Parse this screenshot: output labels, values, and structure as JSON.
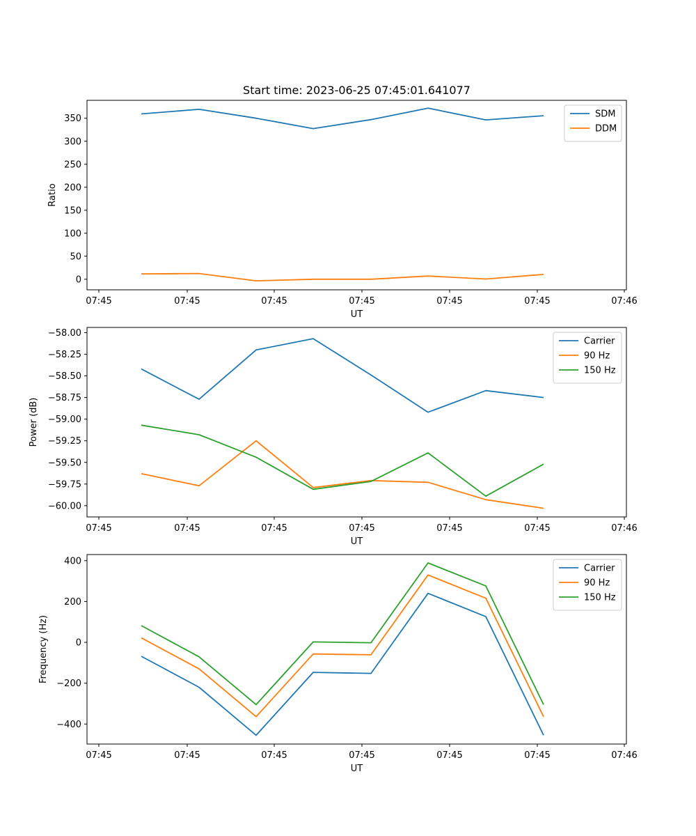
{
  "chart_data": [
    {
      "type": "line",
      "title": "Start time: 2023-06-25 07:45:01.641077",
      "xlabel": "UT",
      "ylabel": "Ratio",
      "x_tick_labels": [
        "07:45",
        "07:45",
        "07:45",
        "07:45",
        "07:45",
        "07:45",
        "07:46"
      ],
      "y_ticks": [
        0,
        50,
        100,
        150,
        200,
        250,
        300,
        350
      ],
      "y_tick_labels": [
        "0",
        "50",
        "100",
        "150",
        "200",
        "250",
        "300",
        "350"
      ],
      "ylim": [
        -23,
        389
      ],
      "legend_position": "top-right",
      "grid": false,
      "series": [
        {
          "name": "SDM",
          "color": "#1f77b4",
          "values": [
            359.5,
            369.5,
            350,
            327.5,
            347,
            372,
            346.5,
            355.5
          ]
        },
        {
          "name": "DDM",
          "color": "#ff7f0e",
          "values": [
            11.5,
            12.5,
            -3.5,
            0,
            0,
            7,
            0.5,
            10.5
          ]
        }
      ]
    },
    {
      "type": "line",
      "title": "",
      "xlabel": "UT",
      "ylabel": "Power (dB)",
      "x_tick_labels": [
        "07:45",
        "07:45",
        "07:45",
        "07:45",
        "07:45",
        "07:45",
        "07:46"
      ],
      "y_ticks": [
        -60.0,
        -59.75,
        -59.5,
        -59.25,
        -59.0,
        -58.75,
        -58.5,
        -58.25,
        -58.0
      ],
      "y_tick_labels": [
        "−60.00",
        "−59.75",
        "−59.50",
        "−59.25",
        "−59.00",
        "−58.75",
        "−58.50",
        "−58.25",
        "−58.00"
      ],
      "ylim": [
        -60.13,
        -57.94
      ],
      "legend_position": "top-right",
      "grid": false,
      "series": [
        {
          "name": "Carrier",
          "color": "#1f77b4",
          "values": [
            -58.42,
            -58.77,
            -58.2,
            -58.07,
            -58.49,
            -58.92,
            -58.67,
            -58.75
          ]
        },
        {
          "name": "90 Hz",
          "color": "#ff7f0e",
          "values": [
            -59.63,
            -59.77,
            -59.25,
            -59.79,
            -59.71,
            -59.73,
            -59.93,
            -60.03
          ]
        },
        {
          "name": "150 Hz",
          "color": "#2ca02c",
          "values": [
            -59.07,
            -59.18,
            -59.44,
            -59.81,
            -59.72,
            -59.39,
            -59.89,
            -59.52
          ]
        }
      ]
    },
    {
      "type": "line",
      "title": "",
      "xlabel": "UT",
      "ylabel": "Frequency (Hz)",
      "x_tick_labels": [
        "07:45",
        "07:45",
        "07:45",
        "07:45",
        "07:45",
        "07:45",
        "07:46"
      ],
      "y_ticks": [
        -400,
        -200,
        0,
        200,
        400
      ],
      "y_tick_labels": [
        "−400",
        "−200",
        "0",
        "200",
        "400"
      ],
      "ylim": [
        -498,
        430
      ],
      "legend_position": "top-right",
      "grid": false,
      "series": [
        {
          "name": "Carrier",
          "color": "#1f77b4",
          "values": [
            -68,
            -220,
            -455,
            -147,
            -152,
            240,
            126,
            -455
          ]
        },
        {
          "name": "90 Hz",
          "color": "#ff7f0e",
          "values": [
            22,
            -130,
            -364,
            -57,
            -61,
            330,
            216,
            -364
          ]
        },
        {
          "name": "150 Hz",
          "color": "#2ca02c",
          "values": [
            82,
            -71,
            -305,
            2,
            -2,
            389,
            276,
            -305
          ]
        }
      ]
    }
  ]
}
